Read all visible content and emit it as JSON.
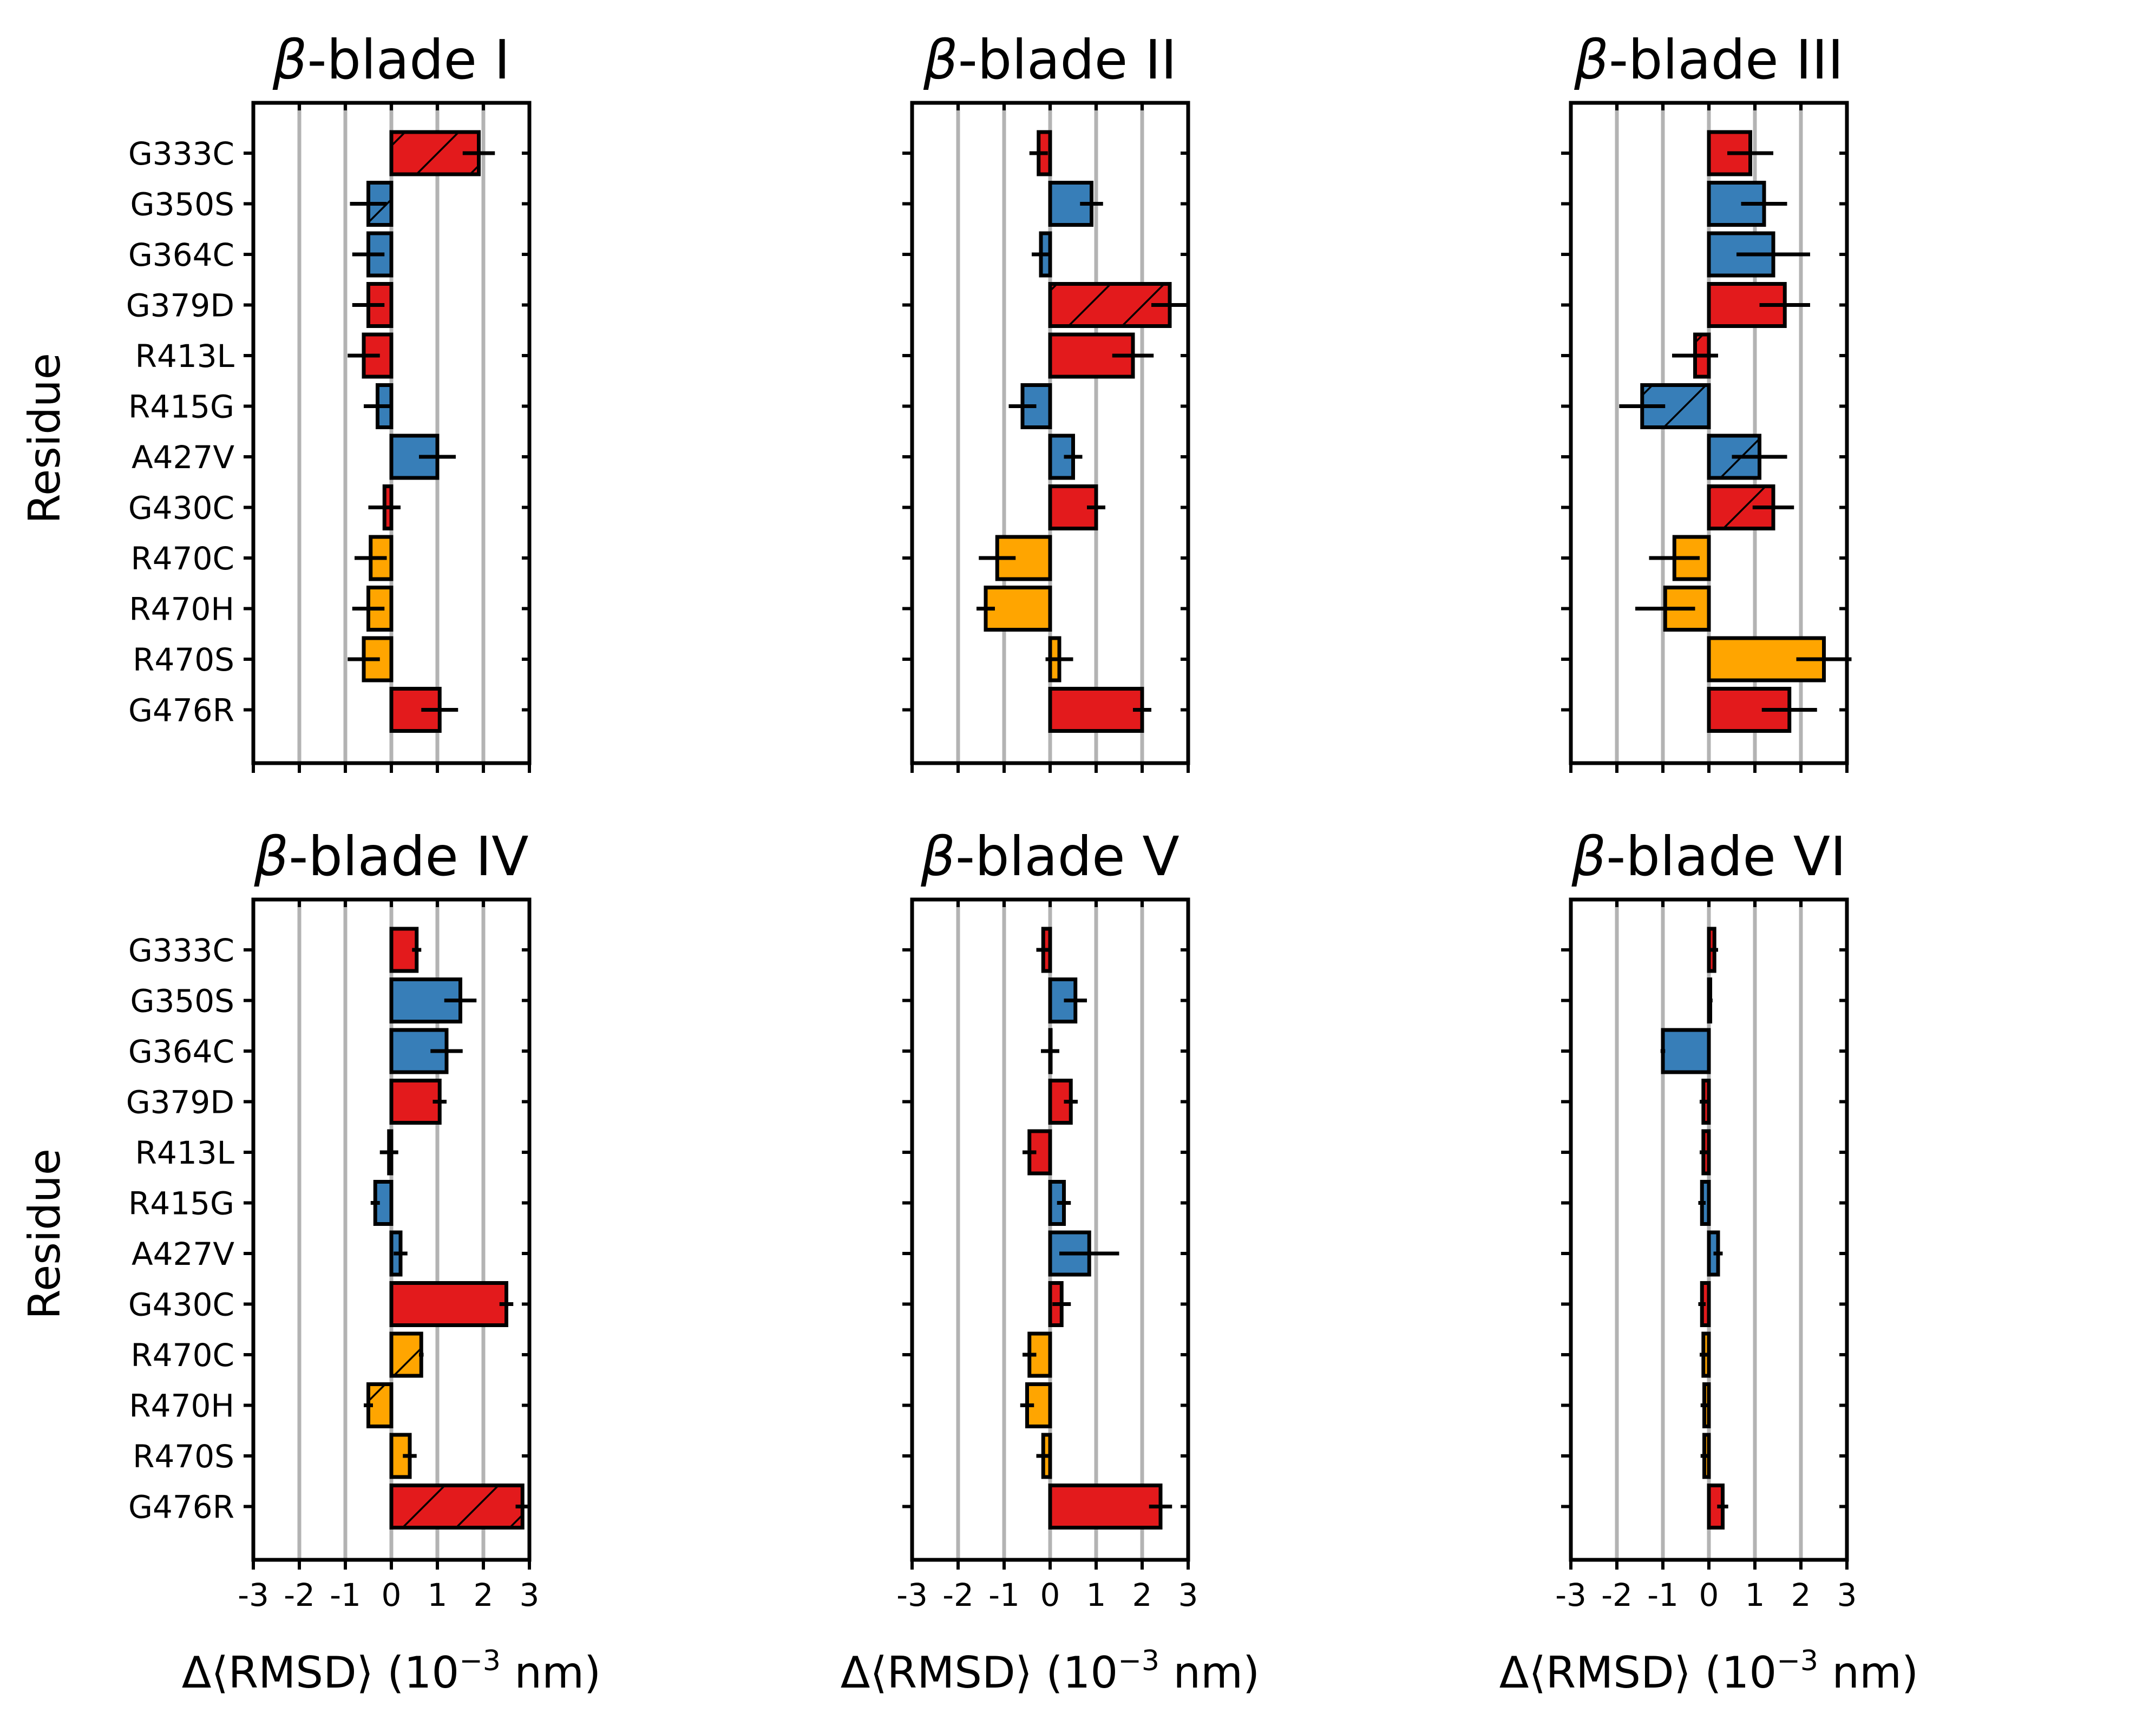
{
  "chart_data": {
    "type": "bar",
    "orientation": "horizontal",
    "ylabel": "Residue",
    "xlabel_main": "Δ⟨RMSD⟩ (10",
    "xlabel_exp": "−3",
    "xlabel_unit": " nm)",
    "xlim": [
      -3,
      3
    ],
    "xticks": [
      "-3",
      "-2",
      "-1",
      "0",
      "1",
      "2",
      "3"
    ],
    "title_prefix": "β",
    "categories": [
      "G333C",
      "G350S",
      "G364C",
      "G379D",
      "R413L",
      "R415G",
      "A427V",
      "G430C",
      "R470C",
      "R470H",
      "R470S",
      "G476R"
    ],
    "colors": {
      "red": "#e31a1c",
      "blue": "#377eb8",
      "orange": "#ffa500"
    },
    "category_colors": [
      "red",
      "blue",
      "blue",
      "red",
      "red",
      "blue",
      "blue",
      "red",
      "orange",
      "orange",
      "orange",
      "red"
    ],
    "panels": [
      {
        "title": "-blade I",
        "values": [
          1.9,
          -0.5,
          -0.5,
          -0.5,
          -0.6,
          -0.3,
          1.0,
          -0.15,
          -0.45,
          -0.5,
          -0.6,
          1.05
        ],
        "errors": [
          0.35,
          0.4,
          0.35,
          0.35,
          0.35,
          0.3,
          0.4,
          0.35,
          0.35,
          0.35,
          0.35,
          0.4
        ],
        "hatched": [
          true,
          true,
          false,
          false,
          false,
          false,
          false,
          false,
          false,
          false,
          false,
          false
        ]
      },
      {
        "title": "-blade II",
        "values": [
          -0.25,
          0.9,
          -0.2,
          2.6,
          1.8,
          -0.6,
          0.5,
          1.0,
          -1.15,
          -1.4,
          0.2,
          2.0
        ],
        "errors": [
          0.2,
          0.25,
          0.2,
          0.4,
          0.45,
          0.3,
          0.2,
          0.2,
          0.4,
          0.2,
          0.3,
          0.2
        ],
        "hatched": [
          false,
          false,
          false,
          true,
          false,
          false,
          false,
          false,
          false,
          false,
          false,
          false
        ]
      },
      {
        "title": "-blade III",
        "values": [
          0.9,
          1.2,
          1.4,
          1.65,
          -0.3,
          -1.45,
          1.1,
          1.4,
          -0.75,
          -0.95,
          2.5,
          1.75
        ],
        "errors": [
          0.5,
          0.5,
          0.8,
          0.55,
          0.5,
          0.5,
          0.6,
          0.45,
          0.55,
          0.65,
          0.6,
          0.6
        ],
        "hatched": [
          false,
          false,
          false,
          false,
          true,
          true,
          true,
          true,
          false,
          false,
          false,
          false
        ]
      },
      {
        "title": "-blade IV",
        "values": [
          0.55,
          1.5,
          1.2,
          1.05,
          -0.05,
          -0.35,
          0.2,
          2.5,
          0.65,
          -0.5,
          0.4,
          2.85
        ],
        "errors": [
          0.1,
          0.35,
          0.35,
          0.15,
          0.2,
          0.1,
          0.15,
          0.15,
          0.05,
          0.1,
          0.15,
          0.15
        ],
        "hatched": [
          false,
          false,
          false,
          false,
          false,
          false,
          false,
          false,
          true,
          true,
          false,
          true
        ]
      },
      {
        "title": "-blade V",
        "values": [
          -0.15,
          0.55,
          0.0,
          0.45,
          -0.45,
          0.3,
          0.85,
          0.25,
          -0.45,
          -0.5,
          -0.15,
          2.4
        ],
        "errors": [
          0.15,
          0.25,
          0.2,
          0.15,
          0.15,
          0.15,
          0.65,
          0.2,
          0.15,
          0.15,
          0.15,
          0.25
        ],
        "hatched": [
          false,
          false,
          false,
          false,
          false,
          false,
          false,
          false,
          false,
          false,
          false,
          false
        ]
      },
      {
        "title": "-blade VI",
        "values": [
          0.12,
          0.03,
          -1.0,
          -0.12,
          -0.12,
          -0.15,
          0.2,
          -0.15,
          -0.12,
          -0.1,
          -0.1,
          0.3
        ],
        "errors": [
          0.08,
          0.05,
          0.05,
          0.08,
          0.08,
          0.08,
          0.1,
          0.08,
          0.08,
          0.08,
          0.08,
          0.12
        ],
        "hatched": [
          false,
          false,
          false,
          false,
          false,
          false,
          false,
          false,
          false,
          false,
          false,
          false
        ]
      }
    ]
  }
}
